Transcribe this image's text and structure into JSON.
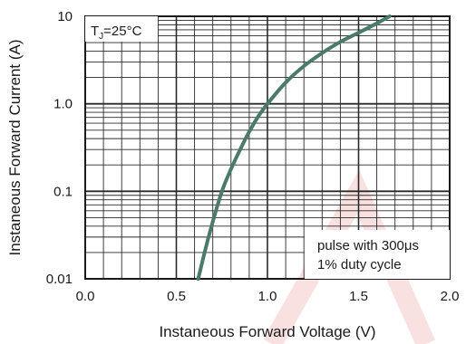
{
  "chart_data": {
    "type": "line",
    "xlabel": "Instaneous Forward Voltage (V)",
    "ylabel": "Instaneous Forward Current (A)",
    "xlim": [
      0,
      2.0
    ],
    "ylim": [
      0.01,
      10
    ],
    "y_scale": "log",
    "grid": true,
    "x_ticks": [
      0,
      0.5,
      1.0,
      1.5,
      2.0
    ],
    "x_tick_labels": [
      "0.0",
      "0.5",
      "1.0",
      "1.5",
      "2.0"
    ],
    "y_ticks": [
      0.01,
      0.1,
      1,
      10
    ],
    "y_tick_labels": [
      "0.01",
      "0.1",
      "1.0",
      "10"
    ],
    "series": [
      {
        "color": "#4a7a6a",
        "x": [
          0.62,
          0.66,
          0.7,
          0.75,
          0.8,
          0.85,
          0.9,
          0.95,
          1.0,
          1.1,
          1.2,
          1.3,
          1.4,
          1.5,
          1.6,
          1.67
        ],
        "y": [
          0.01,
          0.022,
          0.045,
          0.1,
          0.18,
          0.3,
          0.48,
          0.72,
          1.0,
          1.75,
          2.7,
          3.8,
          5.1,
          6.5,
          8.3,
          10
        ]
      }
    ],
    "annotations": {
      "temperature": "T",
      "temperature_sub": "J",
      "temperature_value": "=25°C",
      "pulse_line1": "pulse with 300μs",
      "pulse_line2": "1% duty cycle"
    }
  }
}
